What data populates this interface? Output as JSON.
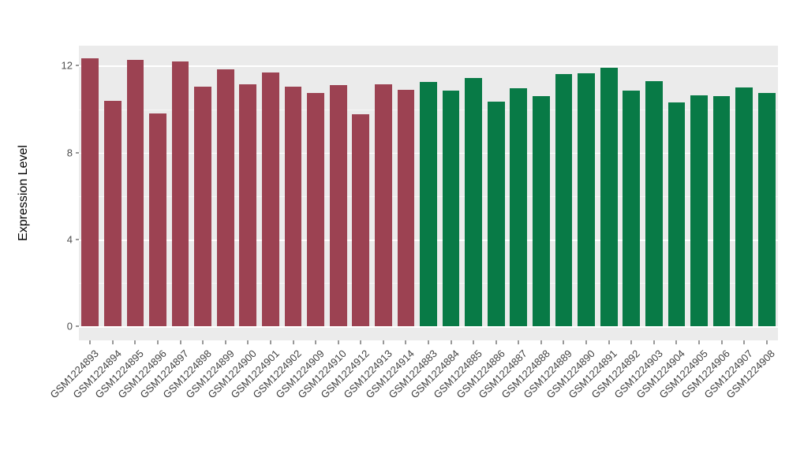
{
  "chart_data": {
    "type": "bar",
    "title": "",
    "xlabel": "",
    "ylabel": "Expression Level",
    "ylim": [
      -0.64,
      12.92
    ],
    "y_major_ticks": [
      0,
      4,
      8,
      12
    ],
    "y_tick_labels": [
      "0",
      "4",
      "8",
      "12"
    ],
    "y_minor_ticks": [
      2,
      6,
      10
    ],
    "grid": "on",
    "legend": "none",
    "panel_bg": "#EBEBEB",
    "grid_color": "#FFFFFF",
    "categories": [
      "GSM1224893",
      "GSM1224894",
      "GSM1224895",
      "GSM1224896",
      "GSM1224897",
      "GSM1224898",
      "GSM1224899",
      "GSM1224900",
      "GSM1224901",
      "GSM1224902",
      "GSM1224909",
      "GSM1224910",
      "GSM1224912",
      "GSM1224913",
      "GSM1224914",
      "GSM1224883",
      "GSM1224884",
      "GSM1224885",
      "GSM1224886",
      "GSM1224887",
      "GSM1224888",
      "GSM1224889",
      "GSM1224890",
      "GSM1224891",
      "GSM1224892",
      "GSM1224903",
      "GSM1224904",
      "GSM1224905",
      "GSM1224906",
      "GSM1224907",
      "GSM1224908"
    ],
    "values": [
      12.35,
      10.4,
      12.25,
      9.8,
      12.2,
      11.05,
      11.85,
      11.15,
      11.7,
      11.05,
      10.75,
      11.1,
      9.75,
      11.15,
      10.9,
      11.25,
      10.85,
      11.45,
      10.35,
      10.95,
      10.6,
      11.6,
      11.65,
      11.9,
      10.85,
      11.3,
      10.3,
      10.65,
      10.6,
      11.0,
      10.75
    ],
    "groups": [
      "group1",
      "group1",
      "group1",
      "group1",
      "group1",
      "group1",
      "group1",
      "group1",
      "group1",
      "group1",
      "group1",
      "group1",
      "group1",
      "group1",
      "group1",
      "group2",
      "group2",
      "group2",
      "group2",
      "group2",
      "group2",
      "group2",
      "group2",
      "group2",
      "group2",
      "group2",
      "group2",
      "group2",
      "group2",
      "group2",
      "group2"
    ],
    "group_colors": {
      "group1": "#9C4252",
      "group2": "#087A46"
    }
  }
}
